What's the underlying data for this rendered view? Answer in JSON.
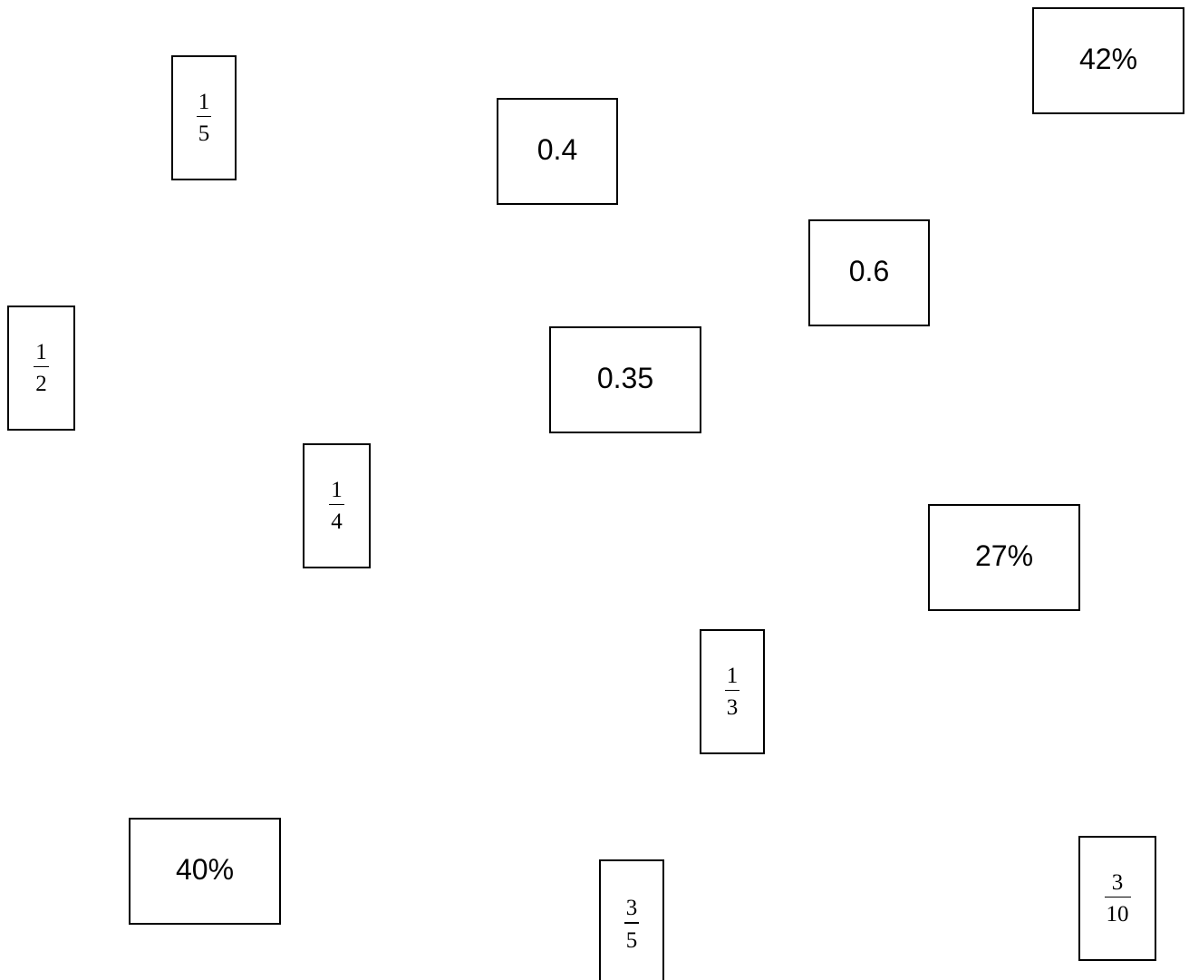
{
  "cards": {
    "frac_1_5": {
      "numerator": "1",
      "denominator": "5"
    },
    "dec_0_4": {
      "text": "0.4"
    },
    "pct_42": {
      "text": "42%"
    },
    "dec_0_6": {
      "text": "0.6"
    },
    "frac_1_2": {
      "numerator": "1",
      "denominator": "2"
    },
    "dec_0_35": {
      "text": "0.35"
    },
    "frac_1_4": {
      "numerator": "1",
      "denominator": "4"
    },
    "pct_27": {
      "text": "27%"
    },
    "frac_1_3": {
      "numerator": "1",
      "denominator": "3"
    },
    "pct_40": {
      "text": "40%"
    },
    "frac_3_5": {
      "numerator": "3",
      "denominator": "5"
    },
    "frac_3_10": {
      "numerator": "3",
      "denominator": "10"
    }
  }
}
